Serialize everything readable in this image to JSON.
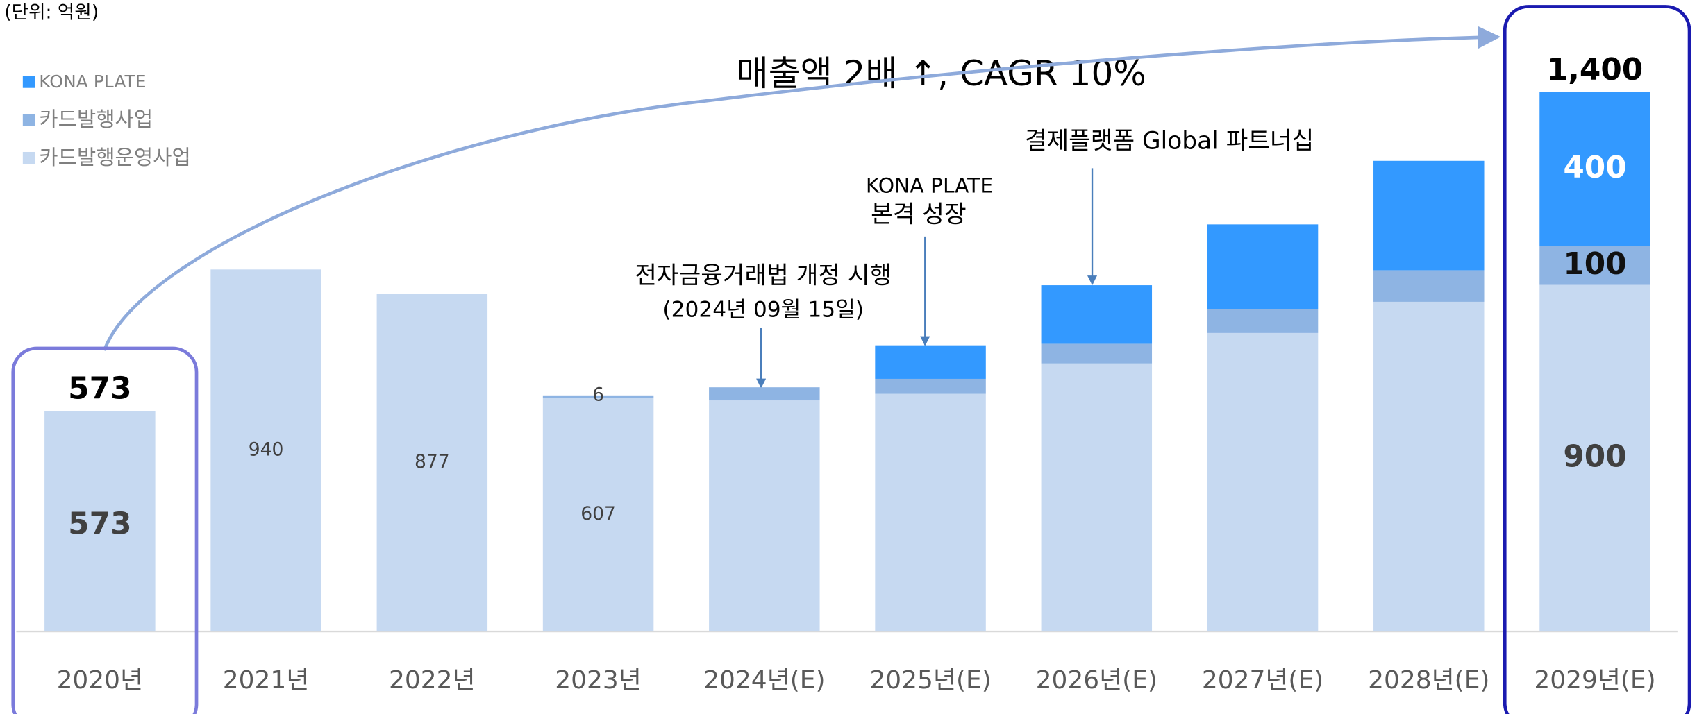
{
  "chart_data": {
    "type": "stacked_bar",
    "unit_note": "(단위: 억원)",
    "title": "매출액  2배 ↑, CAGR 10%",
    "categories": [
      "2020년",
      "2021년",
      "2022년",
      "2023년",
      "2024년(E)",
      "2025년(E)",
      "2026년(E)",
      "2027년(E)",
      "2028년(E)",
      "2029년(E)"
    ],
    "series": [
      {
        "name": "카드발행운영사업",
        "color": "#c6d9f1",
        "values": [
          573,
          940,
          877,
          607,
          600,
          617,
          696,
          775,
          856,
          900
        ]
      },
      {
        "name": "카드발행사업",
        "color": "#8eb4e3",
        "values": [
          0,
          0,
          0,
          6,
          34,
          39,
          51,
          62,
          82,
          100
        ]
      },
      {
        "name": "KONA PLATE",
        "color": "#3399ff",
        "values": [
          0,
          0,
          0,
          0,
          0,
          87,
          152,
          220,
          284,
          400
        ]
      }
    ],
    "totals": [
      573,
      null,
      null,
      null,
      null,
      null,
      null,
      null,
      null,
      1400
    ],
    "total_labels": [
      null,
      null,
      null,
      null,
      null,
      null,
      null,
      null,
      null,
      "1,400"
    ],
    "segment_labels_shown": [
      [
        true,
        true,
        true,
        true,
        false,
        false,
        false,
        false,
        false,
        true
      ],
      [
        false,
        false,
        false,
        true,
        false,
        false,
        false,
        false,
        false,
        true
      ],
      [
        false,
        false,
        false,
        false,
        false,
        false,
        false,
        false,
        false,
        true
      ]
    ],
    "ylim": [
      0,
      1400
    ],
    "annotations": [
      {
        "text": [
          "전자금융거래법 개정 시행",
          "(2024년 09월 15일)"
        ]
      },
      {
        "text": [
          "KONA PLATE",
          "본격 성장"
        ]
      },
      {
        "text": [
          "결제플랫폼 Global 파트너십"
        ]
      }
    ]
  }
}
